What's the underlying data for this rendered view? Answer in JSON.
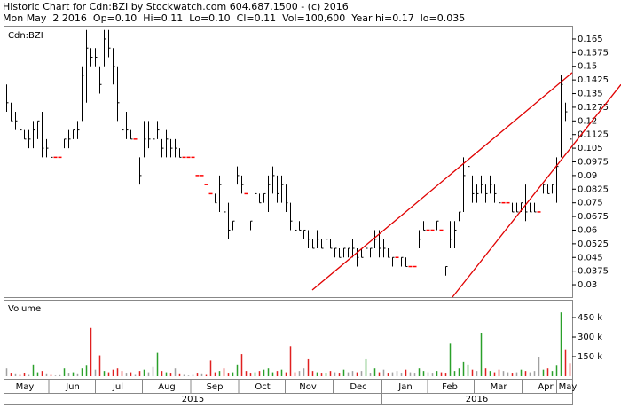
{
  "chart_data": {
    "type": "hlc",
    "title": "Historic Chart for Cdn:BZI by Stockwatch.com 604.687.1500 - (c) 2016",
    "subtitle": "Mon May  2 2016  Op=0.10  Hi=0.11  Lo=0.10  Cl=0.11  Vol=100,600  Year hi=0.17  lo=0.035",
    "price_label": "Cdn:BZI",
    "volume_label": "Volume",
    "categories": [
      null,
      null,
      null,
      null,
      null,
      null,
      null,
      null,
      null,
      null,
      null,
      null,
      null,
      null,
      null,
      null,
      null,
      null,
      null,
      null,
      null,
      null,
      null,
      null,
      null,
      null,
      null,
      null,
      null,
      null,
      null,
      null,
      null,
      null,
      null,
      null,
      null,
      null,
      null,
      null,
      null,
      null,
      null,
      null,
      null,
      null,
      null,
      null,
      null,
      null,
      null,
      null,
      null,
      null,
      null,
      null,
      null,
      null,
      null,
      null,
      null,
      null,
      null,
      null,
      null,
      null,
      null,
      null,
      null,
      null,
      null,
      null,
      null,
      null,
      null,
      null,
      null,
      null,
      null,
      null,
      null,
      null,
      null,
      null,
      null,
      null,
      null,
      null,
      null,
      null,
      null,
      null,
      null,
      null,
      null,
      null,
      null,
      null,
      null,
      null,
      null,
      null,
      null,
      null,
      null,
      null,
      null,
      null,
      null,
      null,
      null,
      null,
      null,
      null,
      null,
      null,
      null,
      null,
      null,
      null,
      null,
      null,
      null,
      null,
      null,
      null,
      null,
      null
    ],
    "high": [
      0.14,
      0.13,
      0.125,
      0.12,
      0.115,
      0.115,
      0.12,
      0.12,
      0.125,
      0.11,
      0.105,
      0.1,
      0.1,
      0.11,
      0.115,
      0.115,
      0.12,
      0.15,
      0.17,
      0.16,
      0.16,
      0.15,
      0.17,
      0.17,
      0.16,
      0.15,
      0.14,
      0.125,
      0.115,
      0.11,
      0.1,
      0.12,
      0.12,
      0.115,
      0.12,
      0.11,
      0.115,
      0.11,
      0.11,
      0.105,
      0.1,
      0.1,
      0.1,
      0.09,
      0.09,
      0.085,
      0.08,
      0.08,
      0.09,
      0.085,
      0.075,
      0.065,
      0.095,
      0.09,
      0.08,
      0.065,
      0.085,
      0.08,
      0.08,
      0.09,
      0.095,
      0.09,
      0.09,
      0.085,
      0.075,
      0.07,
      0.065,
      0.06,
      0.06,
      0.055,
      0.06,
      0.055,
      0.055,
      0.055,
      0.05,
      0.05,
      0.05,
      0.05,
      0.055,
      0.05,
      0.05,
      0.055,
      0.05,
      0.06,
      0.06,
      0.055,
      0.05,
      0.045,
      0.045,
      0.045,
      0.045,
      0.04,
      0.04,
      0.06,
      0.065,
      0.06,
      0.06,
      0.065,
      0.06,
      0.04,
      0.065,
      0.065,
      0.07,
      0.1,
      0.1,
      0.09,
      0.085,
      0.09,
      0.085,
      0.09,
      0.085,
      0.08,
      0.075,
      0.075,
      0.075,
      0.075,
      0.075,
      0.085,
      0.075,
      0.075,
      0.07,
      0.085,
      0.085,
      0.085,
      0.1,
      0.145,
      0.13,
      0.11
    ],
    "low": [
      0.125,
      0.12,
      0.115,
      0.11,
      0.11,
      0.105,
      0.105,
      0.11,
      0.1,
      0.1,
      0.1,
      0.1,
      0.1,
      0.105,
      0.105,
      0.11,
      0.11,
      0.12,
      0.13,
      0.15,
      0.15,
      0.135,
      0.15,
      0.155,
      0.14,
      0.12,
      0.11,
      0.11,
      0.11,
      0.11,
      0.085,
      0.1,
      0.105,
      0.1,
      0.11,
      0.1,
      0.1,
      0.1,
      0.1,
      0.1,
      0.1,
      0.1,
      0.1,
      0.09,
      0.09,
      0.085,
      0.08,
      0.075,
      0.07,
      0.065,
      0.055,
      0.06,
      0.085,
      0.08,
      0.08,
      0.06,
      0.075,
      0.075,
      0.075,
      0.07,
      0.08,
      0.075,
      0.075,
      0.07,
      0.06,
      0.06,
      0.06,
      0.055,
      0.05,
      0.05,
      0.05,
      0.05,
      0.05,
      0.05,
      0.045,
      0.045,
      0.045,
      0.045,
      0.045,
      0.04,
      0.045,
      0.045,
      0.045,
      0.05,
      0.045,
      0.045,
      0.045,
      0.04,
      0.045,
      0.04,
      0.04,
      0.04,
      0.04,
      0.05,
      0.06,
      0.06,
      0.06,
      0.06,
      0.06,
      0.035,
      0.05,
      0.05,
      0.065,
      0.07,
      0.08,
      0.075,
      0.075,
      0.08,
      0.075,
      0.08,
      0.075,
      0.075,
      0.075,
      0.075,
      0.07,
      0.07,
      0.07,
      0.065,
      0.07,
      0.07,
      0.07,
      0.08,
      0.08,
      0.08,
      0.075,
      0.1,
      0.12,
      0.1
    ],
    "close": [
      0.13,
      0.12,
      0.12,
      0.115,
      0.11,
      0.11,
      0.115,
      0.12,
      0.105,
      0.105,
      0.1,
      0.1,
      0.1,
      0.11,
      0.11,
      0.115,
      0.115,
      0.145,
      0.16,
      0.155,
      0.155,
      0.14,
      0.165,
      0.16,
      0.15,
      0.13,
      0.115,
      0.115,
      0.11,
      0.11,
      0.09,
      0.11,
      0.11,
      0.11,
      0.115,
      0.105,
      0.11,
      0.105,
      0.105,
      0.1,
      0.1,
      0.1,
      0.1,
      0.09,
      0.09,
      0.085,
      0.08,
      0.075,
      0.085,
      0.07,
      0.06,
      0.065,
      0.09,
      0.085,
      0.08,
      0.065,
      0.08,
      0.075,
      0.08,
      0.085,
      0.09,
      0.08,
      0.085,
      0.075,
      0.065,
      0.06,
      0.06,
      0.06,
      0.055,
      0.05,
      0.055,
      0.05,
      0.055,
      0.05,
      0.05,
      0.045,
      0.05,
      0.05,
      0.05,
      0.045,
      0.045,
      0.05,
      0.05,
      0.055,
      0.05,
      0.05,
      0.045,
      0.045,
      0.045,
      0.045,
      0.04,
      0.04,
      0.04,
      0.055,
      0.06,
      0.06,
      0.06,
      0.065,
      0.06,
      0.04,
      0.055,
      0.06,
      0.07,
      0.09,
      0.095,
      0.08,
      0.08,
      0.085,
      0.08,
      0.085,
      0.08,
      0.075,
      0.075,
      0.075,
      0.07,
      0.07,
      0.075,
      0.07,
      0.07,
      0.07,
      0.07,
      0.085,
      0.08,
      0.085,
      0.095,
      0.14,
      0.125,
      0.11
    ],
    "volume": [
      60000,
      20000,
      15000,
      10000,
      25000,
      10000,
      90000,
      30000,
      40000,
      15000,
      10000,
      5000,
      8000,
      60000,
      20000,
      30000,
      15000,
      60000,
      80000,
      370000,
      50000,
      160000,
      40000,
      30000,
      50000,
      60000,
      40000,
      20000,
      30000,
      10000,
      40000,
      50000,
      30000,
      70000,
      180000,
      40000,
      30000,
      20000,
      60000,
      15000,
      10000,
      5000,
      10000,
      20000,
      15000,
      10000,
      120000,
      30000,
      40000,
      60000,
      20000,
      30000,
      90000,
      170000,
      40000,
      20000,
      30000,
      40000,
      50000,
      60000,
      30000,
      40000,
      50000,
      30000,
      230000,
      30000,
      40000,
      60000,
      130000,
      40000,
      30000,
      20000,
      20000,
      40000,
      30000,
      20000,
      50000,
      30000,
      40000,
      30000,
      40000,
      130000,
      20000,
      60000,
      30000,
      50000,
      20000,
      30000,
      40000,
      20000,
      50000,
      30000,
      20000,
      60000,
      40000,
      30000,
      20000,
      40000,
      30000,
      20000,
      250000,
      40000,
      60000,
      110000,
      90000,
      50000,
      40000,
      330000,
      60000,
      40000,
      30000,
      50000,
      40000,
      30000,
      20000,
      30000,
      50000,
      40000,
      30000,
      40000,
      150000,
      50000,
      60000,
      40000,
      80000,
      490000,
      200000,
      100600
    ],
    "up_color": "#2aa02a",
    "down_color": "#e02020",
    "flat_color": "#a0a0a0",
    "bar_color": "#000000",
    "dash_color": "#ff0000",
    "trend_color": "#e00000",
    "ylim": [
      0.0232,
      0.1718
    ],
    "yticks": [
      0.165,
      0.1575,
      0.15,
      0.1425,
      0.135,
      0.1275,
      0.12,
      0.1125,
      0.105,
      0.0975,
      0.09,
      0.0825,
      0.075,
      0.0675,
      0.06,
      0.0525,
      0.045,
      0.0375,
      0.03
    ],
    "vlim": [
      0,
      573000
    ],
    "vticks": [
      {
        "value": 450000,
        "label": "450 k"
      },
      {
        "value": 300000,
        "label": "300 k"
      },
      {
        "value": 150000,
        "label": "150 k"
      }
    ],
    "month_ticks": [
      {
        "value": 4.1,
        "label": "May"
      },
      {
        "value": 14.9,
        "label": "Jun"
      },
      {
        "value": 25.1,
        "label": "Jul"
      },
      {
        "value": 36.1,
        "label": "Aug"
      },
      {
        "value": 46.9,
        "label": "Sep"
      },
      {
        "value": 57.7,
        "label": "Oct"
      },
      {
        "value": 67.9,
        "label": "Nov"
      },
      {
        "value": 79.3,
        "label": "Dec"
      },
      {
        "value": 89.9,
        "label": "Jan"
      },
      {
        "value": 99.9,
        "label": "Feb"
      },
      {
        "value": 110.9,
        "label": "Mar"
      },
      {
        "value": 121.5,
        "label": "Apr"
      },
      {
        "value": 126.5,
        "label": "May"
      }
    ],
    "year_ticks": [
      {
        "value": 42,
        "label": "2015"
      },
      {
        "value": 106,
        "label": "2016"
      }
    ],
    "trendlines": [
      {
        "from": [
          68.9,
          0.0271
        ],
        "to": [
          127.5,
          0.1465
        ]
      },
      {
        "from": [
          100.5,
          0.0232
        ],
        "to": [
          138.5,
          0.14
        ]
      }
    ]
  }
}
